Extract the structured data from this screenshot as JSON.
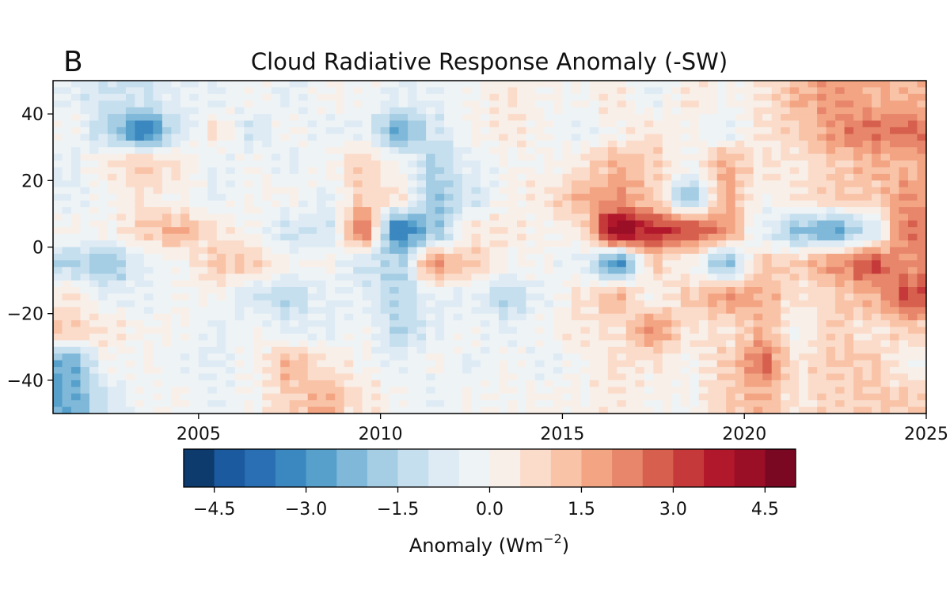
{
  "chart_data": {
    "type": "heatmap",
    "panel_label": "B",
    "title": "Cloud Radiative Response Anomaly (-SW)",
    "xlabel": "",
    "ylabel": "",
    "xlim": [
      2001,
      2025
    ],
    "ylim": [
      -50,
      50
    ],
    "xticks": [
      2005,
      2010,
      2015,
      2020,
      2025
    ],
    "yticks": [
      40,
      20,
      0,
      -20,
      -40
    ],
    "ytick_labels": [
      "40",
      "20",
      "0",
      "−20",
      "−40"
    ],
    "x_years": [
      2001,
      2002,
      2003,
      2004,
      2005,
      2006,
      2007,
      2008,
      2009,
      2010,
      2011,
      2012,
      2013,
      2014,
      2015,
      2016,
      2017,
      2018,
      2019,
      2020,
      2021,
      2022,
      2023,
      2024
    ],
    "y_lat": [
      45,
      35,
      25,
      15,
      5,
      -5,
      -15,
      -25,
      -35,
      -45
    ],
    "values": [
      [
        -0.5,
        -1,
        -1,
        -0.5,
        -0.5,
        0,
        -0.5,
        0,
        0,
        -0.5,
        -0.5,
        0,
        0.5,
        0,
        0,
        0.5,
        -0.5,
        0.5,
        0,
        0.5,
        1.5,
        2,
        1.5,
        1.5
      ],
      [
        0,
        -1.5,
        -3.5,
        -1,
        0.5,
        -1,
        0,
        -0.5,
        -0.5,
        -2.5,
        -1,
        0,
        0.5,
        0,
        -0.5,
        0,
        0.5,
        0,
        -0.5,
        0.5,
        1,
        2,
        2.5,
        2.5
      ],
      [
        -0.5,
        0.5,
        1,
        0.5,
        -0.5,
        0,
        -0.5,
        0,
        1,
        0,
        -1.5,
        -0.5,
        0,
        0,
        0.5,
        1.5,
        1,
        0,
        1.5,
        0.5,
        0.5,
        1,
        1.5,
        1.5
      ],
      [
        -0.5,
        0,
        0.5,
        0,
        -0.5,
        0,
        0,
        -0.5,
        1,
        0.5,
        -2,
        -1,
        0,
        0.5,
        1.5,
        2,
        1,
        -2,
        1.5,
        0,
        0.5,
        1,
        1,
        2
      ],
      [
        0,
        0,
        1,
        1.5,
        0.5,
        0,
        -1,
        -1,
        2.5,
        -3.5,
        -2,
        0.5,
        0.5,
        0,
        0.5,
        4.5,
        3.5,
        3,
        2,
        -0.5,
        -2,
        -2.5,
        -1,
        2.5
      ],
      [
        -1.5,
        -2,
        -0.5,
        0,
        1,
        1,
        0,
        0,
        -1,
        -1.5,
        2,
        1,
        0,
        0,
        -0.5,
        -3,
        1,
        0,
        -2,
        1,
        1,
        2,
        3,
        2
      ],
      [
        0.5,
        -0.5,
        -0.5,
        0,
        0,
        -1,
        -1.5,
        -0.5,
        -0.5,
        -1.5,
        -0.5,
        -0.5,
        -1.5,
        -0.5,
        0.5,
        1.5,
        0,
        1,
        2,
        1.5,
        0.5,
        1,
        1.5,
        3
      ],
      [
        1,
        0.5,
        0,
        0,
        -0.5,
        0,
        -0.5,
        -0.5,
        0,
        -1.5,
        -0.5,
        0,
        -0.5,
        0,
        0.5,
        0.5,
        2,
        0.5,
        0.5,
        1.5,
        0,
        1,
        0.5,
        1
      ],
      [
        -2.5,
        0,
        0,
        -0.5,
        -0.5,
        0,
        1.5,
        0.5,
        0,
        -0.5,
        0,
        -0.5,
        0,
        -0.5,
        0,
        0.5,
        0.5,
        0,
        1,
        2.5,
        0.5,
        1,
        1,
        0
      ],
      [
        -2.5,
        -1,
        0,
        0,
        -0.5,
        0,
        1,
        1.5,
        0.5,
        0,
        -0.5,
        0,
        0,
        0,
        0,
        0.5,
        0,
        0,
        1,
        1.5,
        0.5,
        1,
        1,
        1
      ]
    ],
    "colorbar": {
      "label": "Anomaly (Wm",
      "label_exponent": "−2",
      "label_close": ")",
      "range": [
        -5,
        5
      ],
      "step": 0.5,
      "ticks": [
        -4.5,
        -3.0,
        -1.5,
        0.0,
        1.5,
        3.0,
        4.5
      ],
      "tick_labels": [
        "−4.5",
        "−3.0",
        "−1.5",
        "0.0",
        "1.5",
        "3.0",
        "4.5"
      ],
      "colormap": "RdBu_r",
      "colors": [
        "#0d3b6e",
        "#1c5a9f",
        "#2a6fb3",
        "#3b87c0",
        "#56a0cb",
        "#7fb8d9",
        "#a5cde3",
        "#c6dfee",
        "#deebf4",
        "#eef3f6",
        "#f8efe9",
        "#fbdccb",
        "#f9c3a8",
        "#f3a483",
        "#e7866a",
        "#d6604d",
        "#c5393a",
        "#b2182b",
        "#9a0e26",
        "#7a0822"
      ]
    }
  }
}
